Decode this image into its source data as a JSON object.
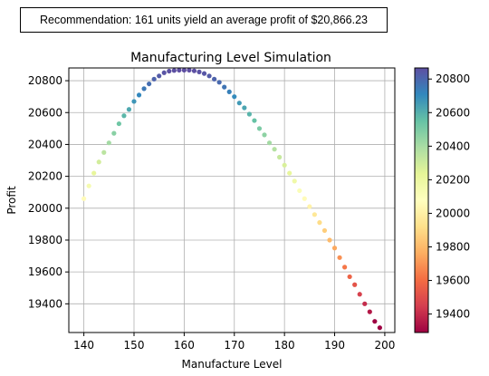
{
  "recommendation": "Recommendation: 161 units yield an average profit of $20,866.23",
  "chart_data": {
    "type": "scatter",
    "title": "Manufacturing Level Simulation",
    "xlabel": "Manufacture Level",
    "ylabel": "Profit",
    "xlim": [
      137,
      202
    ],
    "ylim": [
      19220,
      20880
    ],
    "xticks": [
      "140",
      "150",
      "160",
      "170",
      "180",
      "190",
      "200"
    ],
    "yticks": [
      "19400",
      "19600",
      "19800",
      "20000",
      "20200",
      "20400",
      "20600",
      "20800"
    ],
    "grid": true,
    "colormap": "Spectral",
    "colorbar": {
      "range": [
        19290,
        20866
      ],
      "ticks": [
        "19400",
        "19600",
        "19800",
        "20000",
        "20200",
        "20400",
        "20600",
        "20800"
      ]
    },
    "x": [
      140,
      141,
      142,
      143,
      144,
      145,
      146,
      147,
      148,
      149,
      150,
      151,
      152,
      153,
      154,
      155,
      156,
      157,
      158,
      159,
      160,
      161,
      162,
      163,
      164,
      165,
      166,
      167,
      168,
      169,
      170,
      171,
      172,
      173,
      174,
      175,
      176,
      177,
      178,
      179,
      180,
      181,
      182,
      183,
      184,
      185,
      186,
      187,
      188,
      189,
      190,
      191,
      192,
      193,
      194,
      195,
      196,
      197,
      198,
      199
    ],
    "y": [
      20060,
      20140,
      20220,
      20290,
      20350,
      20410,
      20470,
      20530,
      20580,
      20620,
      20670,
      20710,
      20750,
      20780,
      20810,
      20830,
      20850,
      20860,
      20864,
      20866,
      20866,
      20866,
      20862,
      20855,
      20845,
      20830,
      20810,
      20790,
      20760,
      20730,
      20700,
      20660,
      20630,
      20590,
      20550,
      20500,
      20460,
      20410,
      20370,
      20320,
      20270,
      20220,
      20170,
      20110,
      20060,
      20010,
      19960,
      19910,
      19860,
      19800,
      19750,
      19690,
      19630,
      19570,
      19520,
      19460,
      19400,
      19350,
      19290,
      19250
    ]
  }
}
